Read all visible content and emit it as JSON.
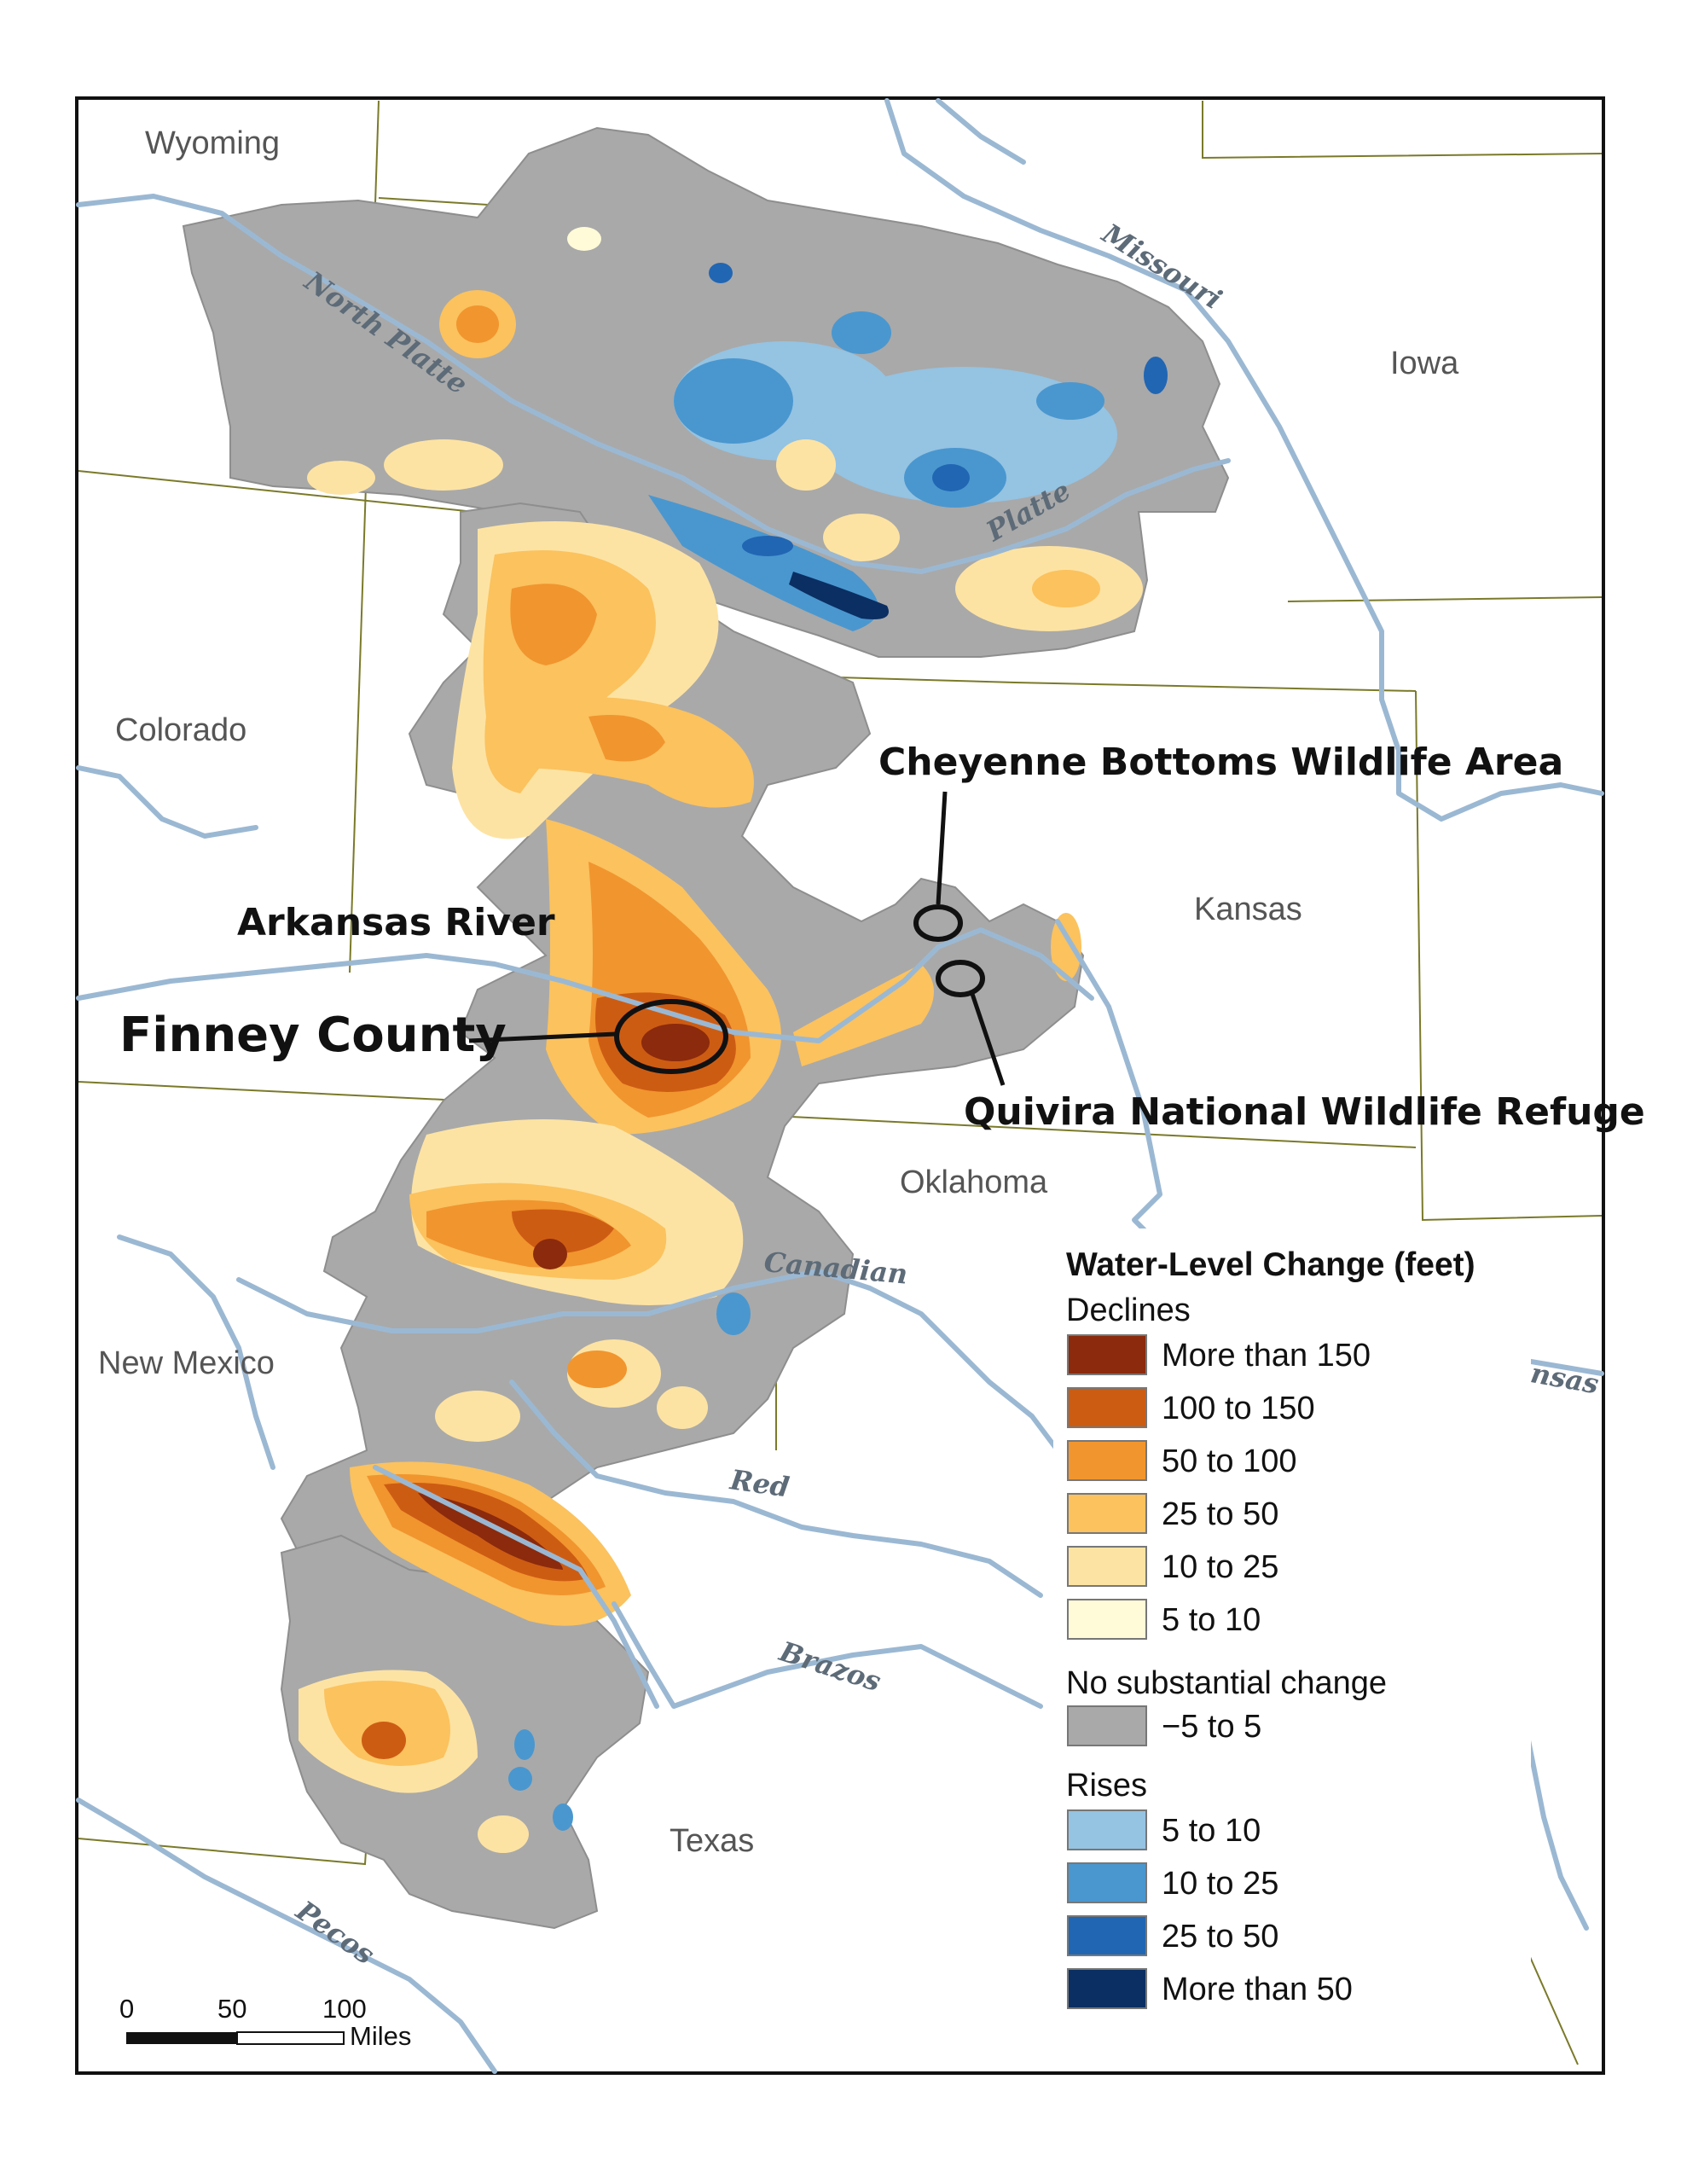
{
  "map": {
    "states": [
      {
        "key": "wyoming",
        "name": "Wyoming"
      },
      {
        "key": "iowa",
        "name": "Iowa"
      },
      {
        "key": "colorado",
        "name": "Colorado"
      },
      {
        "key": "kansas",
        "name": "Kansas"
      },
      {
        "key": "oklahoma",
        "name": "Oklahoma"
      },
      {
        "key": "new-mexico",
        "name": "New Mexico"
      },
      {
        "key": "texas",
        "name": "Texas"
      }
    ],
    "rivers": [
      {
        "key": "north-platte",
        "name": "North Platte"
      },
      {
        "key": "missouri",
        "name": "Missouri"
      },
      {
        "key": "platte",
        "name": "Platte"
      },
      {
        "key": "canadian",
        "name": "Canadian"
      },
      {
        "key": "arkansas",
        "name": "Arkansas"
      },
      {
        "key": "red",
        "name": "Red"
      },
      {
        "key": "brazos",
        "name": "Brazos"
      },
      {
        "key": "pecos",
        "name": "Pecos"
      }
    ],
    "callouts": {
      "cheyenne": "Cheyenne Bottoms Wildlife Area",
      "arkansas_river": "Arkansas River",
      "finney": "Finney County",
      "quivira": "Quivira National Wildlife Refuge"
    }
  },
  "legend": {
    "title": "Water-Level Change (feet)",
    "declines_label": "Declines",
    "declines": [
      {
        "label": "More than 150",
        "color": "#8b2a0c"
      },
      {
        "label": "100 to 150",
        "color": "#cd5c13"
      },
      {
        "label": "50 to 100",
        "color": "#f1952e"
      },
      {
        "label": "25 to 50",
        "color": "#fbc25e"
      },
      {
        "label": "10 to 25",
        "color": "#fde3a3"
      },
      {
        "label": "5 to 10",
        "color": "#fffbd8"
      }
    ],
    "nochange_label": "No substantial change",
    "nochange": [
      {
        "label": "−5 to 5",
        "color": "#a9a9a9"
      }
    ],
    "rises_label": "Rises",
    "rises": [
      {
        "label": "5 to 10",
        "color": "#95c3e2"
      },
      {
        "label": "10 to 25",
        "color": "#4a97cf"
      },
      {
        "label": "25 to 50",
        "color": "#2166b3"
      },
      {
        "label": "More than 50",
        "color": "#0b2f63"
      }
    ]
  },
  "scale_bar": {
    "ticks": [
      "0",
      "50",
      "100"
    ],
    "unit": "Miles"
  },
  "colors": {
    "river": "#9bb8d3",
    "border": "#7a7a2a",
    "aquifer": "#a9a9a9"
  }
}
